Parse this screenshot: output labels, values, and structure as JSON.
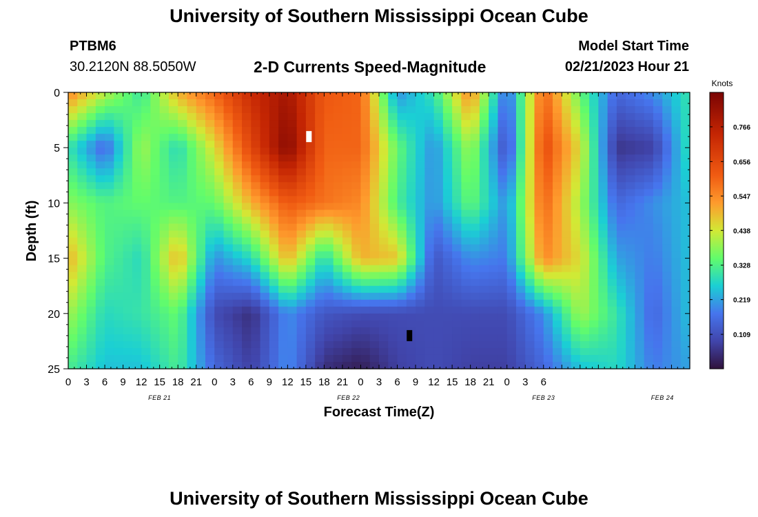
{
  "header": {
    "title": "University of Southern Mississippi Ocean Cube",
    "station": "PTBM6",
    "coordinates": "30.2120N  88.5050W",
    "subtitle": "2-D Currents Speed-Magnitude",
    "model_start_label": "Model Start Time",
    "model_start_value": "02/21/2023 Hour 21"
  },
  "footer": {
    "title_repeat": "University of Southern Mississippi Ocean Cube"
  },
  "colors": {
    "low": "#30123b",
    "high": "#7a0403",
    "colormap": "turbo"
  },
  "chart_data": {
    "type": "heatmap",
    "xlabel": "Forecast Time(Z)",
    "ylabel": "Depth (ft)",
    "x_range_hours": [
      0,
      102
    ],
    "y_range_ft": [
      0,
      25
    ],
    "y_inverted": true,
    "x_tick_labels": [
      "0",
      "3",
      "6",
      "9",
      "12",
      "15",
      "18",
      "21",
      "0",
      "3",
      "6",
      "9",
      "12",
      "15",
      "18",
      "21",
      "0",
      "3",
      "6",
      "9",
      "12",
      "15",
      "18",
      "21",
      "0",
      "3",
      "6"
    ],
    "y_tick_labels": [
      "0",
      "5",
      "10",
      "15",
      "20",
      "25"
    ],
    "y_ticks": [
      0,
      5,
      10,
      15,
      20,
      25
    ],
    "date_labels": [
      {
        "text": "FEB 21",
        "hour": 15
      },
      {
        "text": "FEB 22",
        "hour": 46
      },
      {
        "text": "FEB 23",
        "hour": 78
      },
      {
        "text": "FEB 24",
        "hour": 97.5
      }
    ],
    "colorbar": {
      "units": "Knots",
      "range": [
        0,
        0.875
      ],
      "tick_labels": [
        "0.766",
        "0.656",
        "0.547",
        "0.438",
        "0.328",
        "0.219",
        "0.109"
      ],
      "ticks": [
        0.766,
        0.656,
        0.547,
        0.438,
        0.328,
        0.219,
        0.109
      ]
    },
    "markers": [
      {
        "hour": 39.5,
        "depth_ft": 4,
        "color": "#ffffff",
        "meaning": "maximum"
      },
      {
        "hour": 56.0,
        "depth_ft": 22,
        "color": "#000000",
        "meaning": "minimum"
      }
    ],
    "value_grid": {
      "x_hours": [
        0,
        6,
        12,
        18,
        24,
        30,
        36,
        42,
        48,
        54,
        60,
        66,
        72,
        78,
        84,
        90,
        96,
        102
      ],
      "y_depth_ft": [
        0,
        5,
        10,
        15,
        20,
        25
      ],
      "values_knots": [
        [
          0.55,
          0.42,
          0.3,
          0.5,
          0.6,
          0.73,
          0.8,
          0.62,
          0.6,
          0.2,
          0.3,
          0.55,
          0.15,
          0.6,
          0.35,
          0.15,
          0.2,
          0.3
        ],
        [
          0.3,
          0.15,
          0.4,
          0.28,
          0.45,
          0.66,
          0.85,
          0.6,
          0.6,
          0.35,
          0.2,
          0.4,
          0.1,
          0.65,
          0.45,
          0.06,
          0.08,
          0.3
        ],
        [
          0.38,
          0.33,
          0.35,
          0.33,
          0.35,
          0.5,
          0.62,
          0.58,
          0.55,
          0.32,
          0.2,
          0.35,
          0.2,
          0.6,
          0.4,
          0.15,
          0.2,
          0.25
        ],
        [
          0.5,
          0.33,
          0.28,
          0.5,
          0.2,
          0.28,
          0.5,
          0.28,
          0.5,
          0.48,
          0.12,
          0.2,
          0.18,
          0.55,
          0.45,
          0.22,
          0.18,
          0.25
        ],
        [
          0.4,
          0.28,
          0.3,
          0.35,
          0.1,
          0.05,
          0.2,
          0.12,
          0.1,
          0.1,
          0.1,
          0.1,
          0.1,
          0.2,
          0.4,
          0.3,
          0.15,
          0.25
        ],
        [
          0.32,
          0.25,
          0.25,
          0.32,
          0.15,
          0.08,
          0.2,
          0.05,
          0.02,
          0.08,
          0.1,
          0.08,
          0.08,
          0.15,
          0.25,
          0.28,
          0.18,
          0.22
        ]
      ]
    }
  }
}
